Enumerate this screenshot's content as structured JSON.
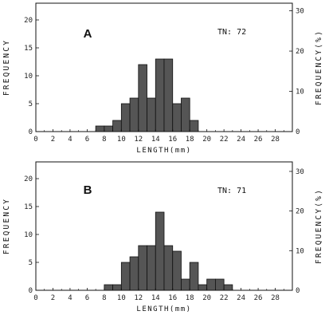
{
  "chart_data": [
    {
      "type": "bar",
      "panel_label": "A",
      "annotation": "TN: 72",
      "xlabel": "LENGTH(mm)",
      "ylabel_left": "FREQUENCY",
      "ylabel_right": "FREQUENCY(%)",
      "xlim": [
        0,
        30
      ],
      "xticks": [
        "0",
        "2",
        "4",
        "6",
        "8",
        "10",
        "12",
        "14",
        "16",
        "18",
        "20",
        "22",
        "24",
        "26",
        "28"
      ],
      "ylim_left": [
        0,
        23
      ],
      "yticks_left": [
        "0",
        "5",
        "10",
        "15",
        "20"
      ],
      "ylim_right": [
        0,
        31.9
      ],
      "yticks_right": [
        "0",
        "10",
        "20",
        "30"
      ],
      "bin_width": 1,
      "bins_start": [
        7,
        8,
        9,
        10,
        11,
        12,
        13,
        14,
        15,
        16,
        17,
        18
      ],
      "values": [
        1,
        1,
        2,
        5,
        6,
        12,
        6,
        13,
        13,
        5,
        6,
        2
      ]
    },
    {
      "type": "bar",
      "panel_label": "B",
      "annotation": "TN: 71",
      "xlabel": "LENGTH(mm)",
      "ylabel_left": "FREQUENCY",
      "ylabel_right": "FREQUENCY(%)",
      "xlim": [
        0,
        30
      ],
      "xticks": [
        "0",
        "2",
        "4",
        "6",
        "8",
        "10",
        "12",
        "14",
        "16",
        "18",
        "20",
        "22",
        "24",
        "26",
        "28"
      ],
      "ylim_left": [
        0,
        23
      ],
      "yticks_left": [
        "0",
        "5",
        "10",
        "15",
        "20"
      ],
      "ylim_right": [
        0,
        32.4
      ],
      "yticks_right": [
        "0",
        "10",
        "20",
        "30"
      ],
      "bin_width": 1,
      "bins_start": [
        8,
        9,
        10,
        11,
        12,
        13,
        14,
        15,
        16,
        17,
        18,
        19,
        20,
        21,
        22
      ],
      "values": [
        1,
        1,
        5,
        6,
        8,
        8,
        14,
        8,
        7,
        2,
        5,
        1,
        2,
        2,
        1
      ]
    }
  ]
}
